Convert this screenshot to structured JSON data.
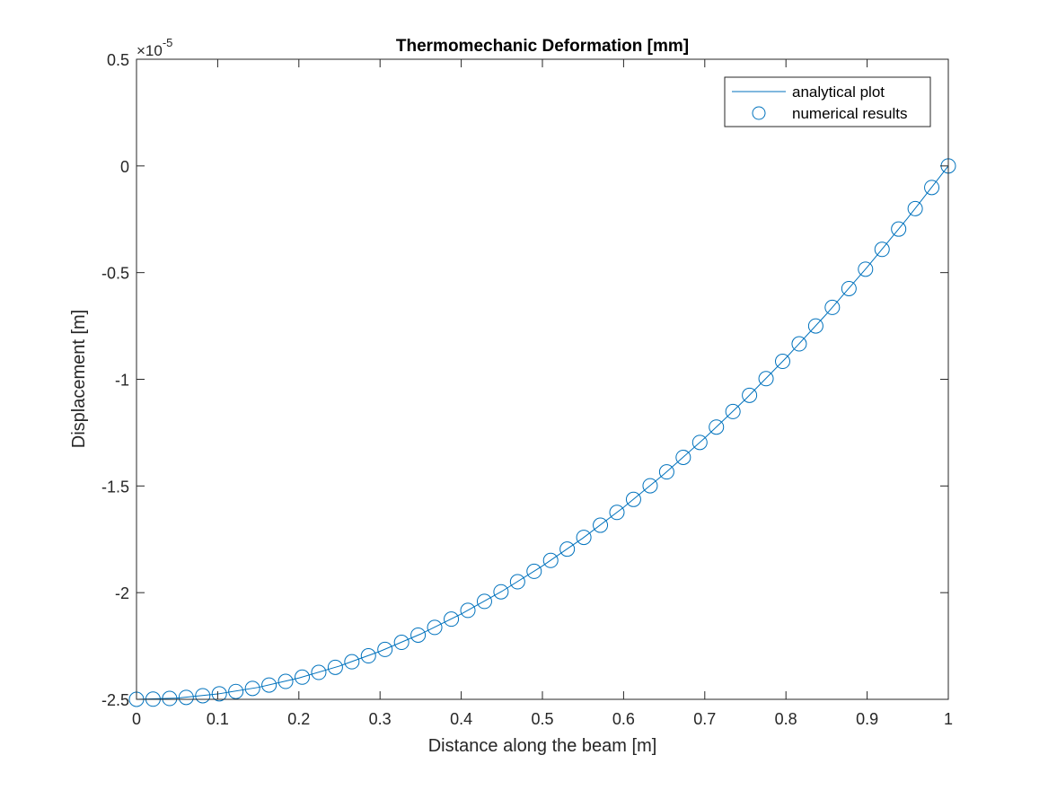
{
  "chart_data": {
    "type": "line",
    "title": "Thermomechanic Deformation [mm]",
    "xlabel": "Distance along the beam [m]",
    "ylabel": "Displacement [m]",
    "y_multiplier": "×10",
    "y_exponent": "-5",
    "xlim": [
      0,
      1
    ],
    "ylim": [
      -2.5,
      0.5
    ],
    "y_scale_factor": 1e-05,
    "xticks": [
      0,
      0.1,
      0.2,
      0.3,
      0.4,
      0.5,
      0.6,
      0.7,
      0.8,
      0.9,
      1
    ],
    "xtick_labels": [
      "0",
      "0.1",
      "0.2",
      "0.3",
      "0.4",
      "0.5",
      "0.6",
      "0.7",
      "0.8",
      "0.9",
      "1"
    ],
    "yticks": [
      -2.5,
      -2,
      -1.5,
      -1,
      -0.5,
      0,
      0.5
    ],
    "ytick_labels": [
      "-2.5",
      "-2",
      "-1.5",
      "-1",
      "-0.5",
      "0",
      "0.5"
    ],
    "grid": false,
    "legend_position": "top-right",
    "color": "#0072BD",
    "series": [
      {
        "name": "analytical plot",
        "style": "line",
        "x": [
          0,
          0.05,
          0.1,
          0.15,
          0.2,
          0.25,
          0.3,
          0.35,
          0.4,
          0.45,
          0.5,
          0.55,
          0.6,
          0.65,
          0.7,
          0.75,
          0.8,
          0.85,
          0.9,
          0.95,
          1
        ],
        "y": [
          -2.5,
          -2.494,
          -2.475,
          -2.444,
          -2.4,
          -2.344,
          -2.275,
          -2.194,
          -2.1,
          -1.994,
          -1.875,
          -1.744,
          -1.6,
          -1.444,
          -1.275,
          -1.094,
          -0.9,
          -0.694,
          -0.475,
          -0.244,
          0
        ]
      },
      {
        "name": "numerical results",
        "style": "marker-circle",
        "x": [
          0,
          0.0204,
          0.0408,
          0.0612,
          0.0816,
          0.102,
          0.1224,
          0.1429,
          0.1633,
          0.1837,
          0.2041,
          0.2245,
          0.2449,
          0.2653,
          0.2857,
          0.3061,
          0.3265,
          0.3469,
          0.3673,
          0.3878,
          0.4082,
          0.4286,
          0.449,
          0.4694,
          0.4898,
          0.5102,
          0.5306,
          0.551,
          0.5714,
          0.5918,
          0.6122,
          0.6327,
          0.6531,
          0.6735,
          0.6939,
          0.7143,
          0.7347,
          0.7551,
          0.7755,
          0.7959,
          0.8163,
          0.8367,
          0.8571,
          0.8776,
          0.898,
          0.9184,
          0.9388,
          0.9592,
          0.9796,
          1
        ],
        "y": [
          -2.5,
          -2.499,
          -2.496,
          -2.491,
          -2.483,
          -2.474,
          -2.463,
          -2.449,
          -2.433,
          -2.416,
          -2.396,
          -2.374,
          -2.35,
          -2.324,
          -2.296,
          -2.266,
          -2.233,
          -2.199,
          -2.163,
          -2.124,
          -2.083,
          -2.041,
          -1.996,
          -1.949,
          -1.9,
          -1.849,
          -1.796,
          -1.741,
          -1.684,
          -1.624,
          -1.563,
          -1.499,
          -1.434,
          -1.366,
          -1.296,
          -1.224,
          -1.151,
          -1.075,
          -0.997,
          -0.916,
          -0.834,
          -0.75,
          -0.663,
          -0.575,
          -0.484,
          -0.391,
          -0.296,
          -0.2,
          -0.101,
          0
        ]
      }
    ]
  }
}
